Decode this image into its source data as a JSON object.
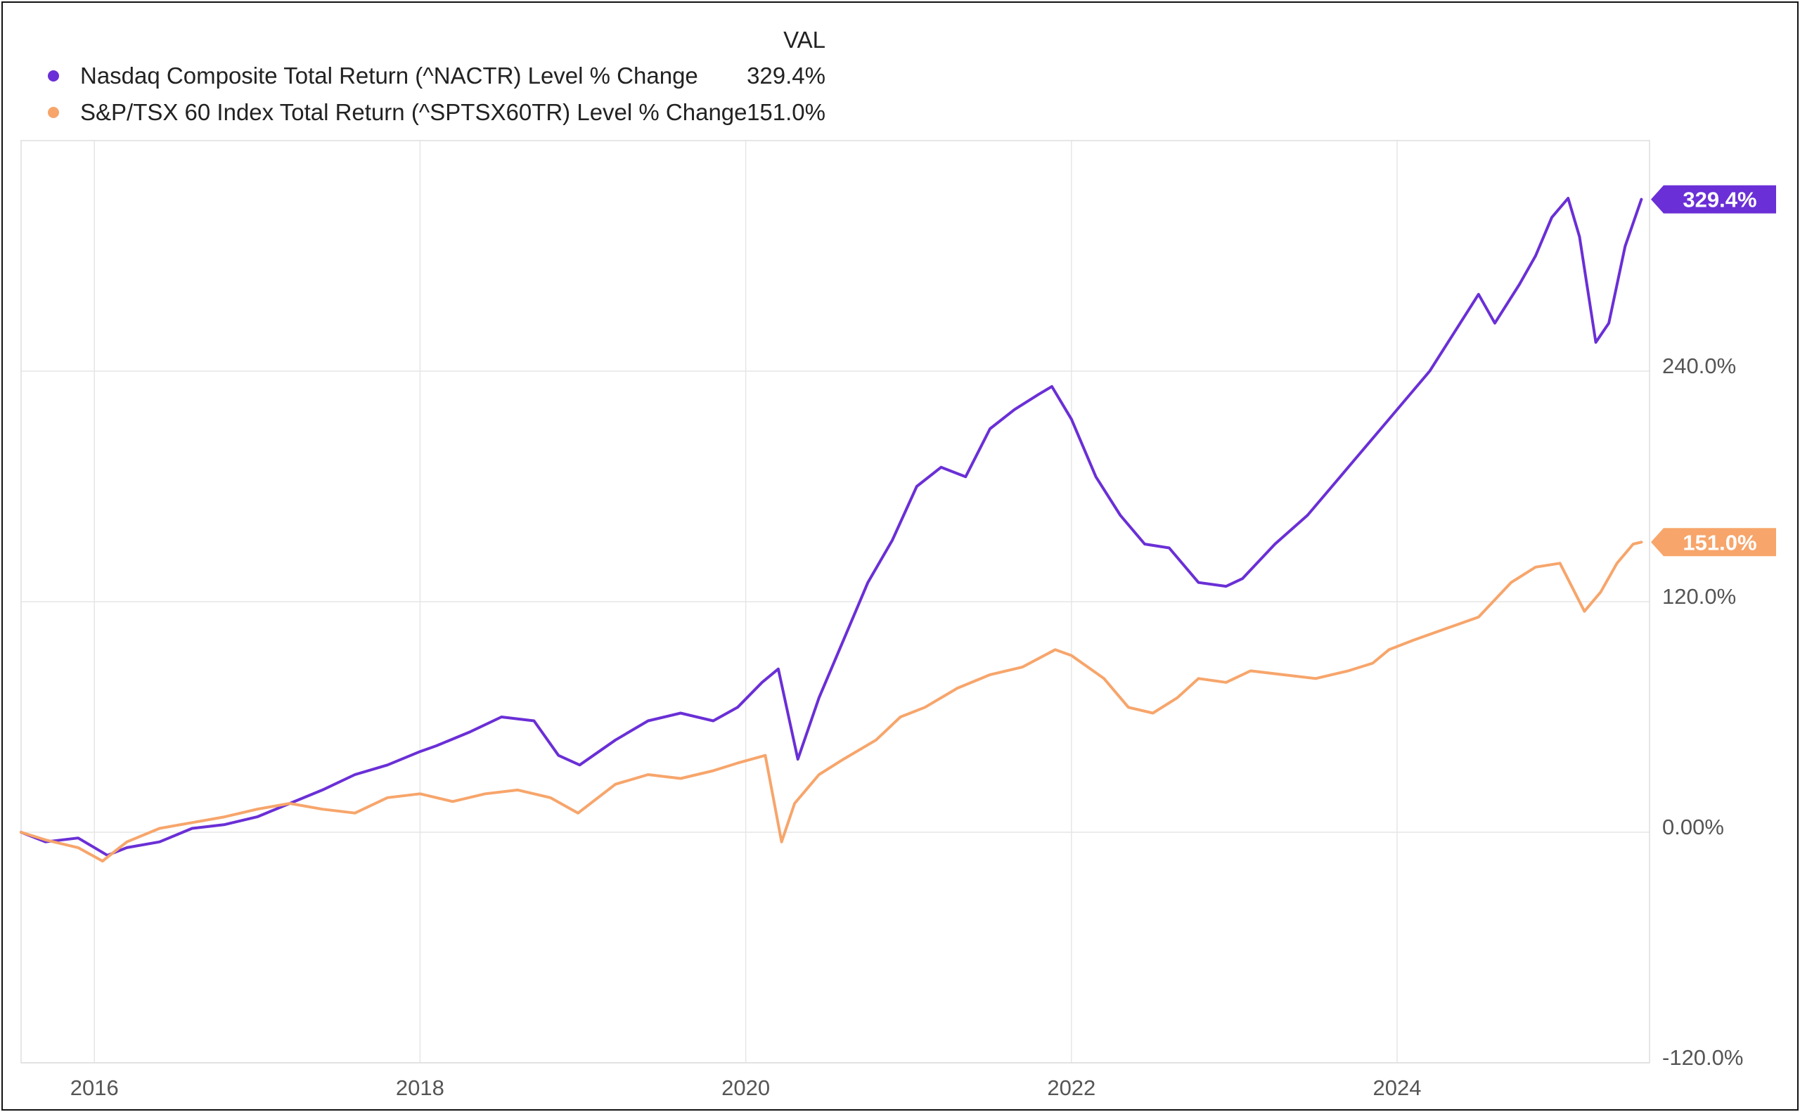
{
  "legend": {
    "header": "VAL",
    "items": [
      {
        "label": "Nasdaq Composite Total Return (^NACTR) Level % Change",
        "value": "329.4%",
        "color": "#6a2fd6"
      },
      {
        "label": "S&P/TSX 60 Index Total Return (^SPTSX60TR) Level % Change",
        "value": "151.0%",
        "color": "#f7a56b"
      }
    ]
  },
  "chart_data": {
    "type": "line",
    "title": "",
    "xlabel": "",
    "ylabel": "",
    "xlim": [
      2015.55,
      2025.55
    ],
    "ylim": [
      -120,
      360
    ],
    "y_ticks": [
      -120,
      0,
      120,
      240
    ],
    "y_tick_labels": [
      "-120.0%",
      "0.00%",
      "120.0%",
      "240.0%"
    ],
    "x_ticks": [
      2016,
      2018,
      2020,
      2022,
      2024
    ],
    "x_tick_labels": [
      "2016",
      "2018",
      "2020",
      "2022",
      "2024"
    ],
    "grid": true,
    "series": [
      {
        "name": "Nasdaq Composite Total Return (^NACTR) Level % Change",
        "color": "#6a2fd6",
        "end_label": "329.4%",
        "x": [
          2015.55,
          2015.7,
          2015.9,
          2016.08,
          2016.2,
          2016.4,
          2016.6,
          2016.8,
          2017.0,
          2017.2,
          2017.4,
          2017.6,
          2017.8,
          2018.0,
          2018.1,
          2018.3,
          2018.5,
          2018.7,
          2018.85,
          2018.98,
          2019.2,
          2019.4,
          2019.6,
          2019.8,
          2019.95,
          2020.1,
          2020.2,
          2020.32,
          2020.45,
          2020.6,
          2020.75,
          2020.9,
          2021.05,
          2021.2,
          2021.35,
          2021.5,
          2021.65,
          2021.8,
          2021.88,
          2022.0,
          2022.15,
          2022.3,
          2022.45,
          2022.6,
          2022.78,
          2022.95,
          2023.05,
          2023.25,
          2023.45,
          2023.6,
          2023.75,
          2023.9,
          2024.05,
          2024.2,
          2024.35,
          2024.5,
          2024.6,
          2024.75,
          2024.85,
          2024.95,
          2025.05,
          2025.12,
          2025.22,
          2025.3,
          2025.4,
          2025.5
        ],
        "y": [
          0,
          -5,
          -3,
          -12,
          -8,
          -5,
          2,
          4,
          8,
          15,
          22,
          30,
          35,
          42,
          45,
          52,
          60,
          58,
          40,
          35,
          48,
          58,
          62,
          58,
          65,
          78,
          85,
          38,
          70,
          100,
          130,
          152,
          180,
          190,
          185,
          210,
          220,
          228,
          232,
          215,
          185,
          165,
          150,
          148,
          130,
          128,
          132,
          150,
          165,
          180,
          195,
          210,
          225,
          240,
          260,
          280,
          265,
          285,
          300,
          320,
          330,
          310,
          255,
          265,
          305,
          329.4
        ]
      },
      {
        "name": "S&P/TSX 60 Index Total Return (^SPTSX60TR) Level % Change",
        "color": "#f7a56b",
        "end_label": "151.0%",
        "x": [
          2015.55,
          2015.7,
          2015.9,
          2016.05,
          2016.2,
          2016.4,
          2016.6,
          2016.8,
          2017.0,
          2017.2,
          2017.4,
          2017.6,
          2017.8,
          2018.0,
          2018.2,
          2018.4,
          2018.6,
          2018.8,
          2018.97,
          2019.2,
          2019.4,
          2019.6,
          2019.8,
          2019.95,
          2020.12,
          2020.22,
          2020.3,
          2020.45,
          2020.6,
          2020.8,
          2020.95,
          2021.1,
          2021.3,
          2021.5,
          2021.7,
          2021.9,
          2022.0,
          2022.2,
          2022.35,
          2022.5,
          2022.65,
          2022.78,
          2022.95,
          2023.1,
          2023.3,
          2023.5,
          2023.7,
          2023.85,
          2023.95,
          2024.1,
          2024.3,
          2024.5,
          2024.7,
          2024.85,
          2025.0,
          2025.15,
          2025.25,
          2025.35,
          2025.45,
          2025.5
        ],
        "y": [
          0,
          -4,
          -8,
          -15,
          -5,
          2,
          5,
          8,
          12,
          15,
          12,
          10,
          18,
          20,
          16,
          20,
          22,
          18,
          10,
          25,
          30,
          28,
          32,
          36,
          40,
          -5,
          15,
          30,
          38,
          48,
          60,
          65,
          75,
          82,
          86,
          95,
          92,
          80,
          65,
          62,
          70,
          80,
          78,
          84,
          82,
          80,
          84,
          88,
          95,
          100,
          106,
          112,
          130,
          138,
          140,
          115,
          125,
          140,
          150,
          151.0
        ]
      }
    ]
  }
}
